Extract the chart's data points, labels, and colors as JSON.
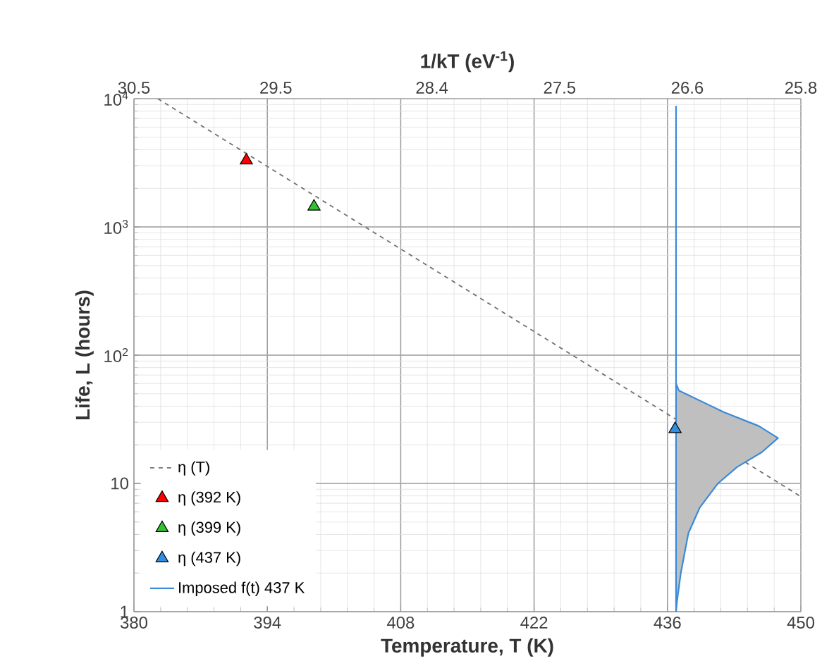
{
  "chart_data": {
    "type": "scatter",
    "xlabel": "Temperature, T (K)",
    "ylabel": "Life, L (hours)",
    "x2label": "1/kT (eV$^{-1}$)",
    "xlim": [
      380,
      450
    ],
    "xticks": [
      380,
      394,
      408,
      422,
      436,
      450
    ],
    "x2lim": [
      30.5,
      25.8
    ],
    "x2ticks": [
      30.5,
      29.5,
      28.4,
      27.5,
      26.6,
      25.8
    ],
    "ylim": [
      1,
      10000
    ],
    "yticks": [
      1,
      10,
      {
        "value": 100,
        "label": "10$^{2}$"
      },
      {
        "value": 1000,
        "label": "10$^{3}$"
      },
      {
        "value": 10000,
        "label": "10$^{4}$"
      }
    ],
    "log": "y",
    "grid": true,
    "legend": "bottom left",
    "series": [
      {
        "name": "η (T)",
        "type": "line",
        "line_style": "dashed",
        "marker": "none",
        "color": "#707070",
        "x": [
          382.5,
          450
        ],
        "values": [
          10000,
          7.9
        ]
      },
      {
        "name": "η (392 K)",
        "marker": "triangle",
        "color": "#ff0000",
        "x": [
          391.8
        ],
        "values": [
          3300
        ]
      },
      {
        "name": "η (399 K)",
        "marker": "triangle",
        "color": "#33c233",
        "x": [
          398.9
        ],
        "values": [
          1440
        ]
      },
      {
        "name": "η (437 K)",
        "marker": "triangle",
        "color": "#2f8fe0",
        "x": [
          436.8
        ],
        "values": [
          26.5
        ]
      },
      {
        "name": "Imposed f(t) 437 K",
        "type": "area",
        "marker": "none",
        "color": "#3a8ad8",
        "x": [
          436.9,
          437.0,
          437.4,
          438.2,
          439.4,
          441.3,
          443.3,
          445.9,
          447.6,
          445.6,
          441.9,
          437.2,
          436.9,
          436.9
        ],
        "values": [
          1,
          1.2,
          2,
          4.1,
          6.5,
          10,
          13.4,
          17.5,
          22.6,
          28,
          36,
          53,
          60,
          8700
        ]
      }
    ]
  }
}
